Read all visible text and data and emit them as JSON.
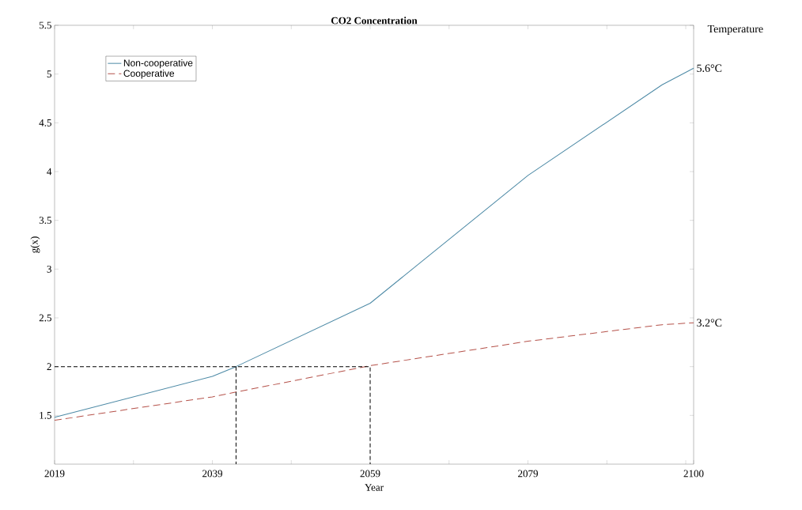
{
  "chart_data": {
    "type": "line",
    "title": "CO2 Concentration",
    "xlabel": "Year",
    "ylabel": "g(x)",
    "xlim": [
      2019,
      2100
    ],
    "xticks": [
      2019,
      {
        "value": 2029,
        "label": null
      },
      2039,
      {
        "value": 2049,
        "label": null
      },
      2059,
      {
        "value": 2069,
        "label": null
      },
      2079,
      {
        "value": 2089,
        "label": null
      },
      {
        "value": 2099,
        "label": null
      },
      2100
    ],
    "ylim": [
      1,
      5.5
    ],
    "yticks": [
      1.5,
      2,
      2.5,
      3,
      3.5,
      4,
      4.5,
      5,
      5.5
    ],
    "series": [
      {
        "name": "Non-cooperative",
        "color": "#4d8aa6",
        "line_style": "solid",
        "x": [
          2019,
          2039,
          2042,
          2059,
          2079,
          2096,
          2100
        ],
        "values": [
          1.48,
          1.9,
          2.0,
          2.65,
          3.96,
          4.89,
          5.06
        ]
      },
      {
        "name": "Cooperative",
        "color": "#b5524a",
        "line_style": "dashed",
        "x": [
          2019,
          2039,
          2042,
          2049,
          2059,
          2079,
          2096,
          2100
        ],
        "values": [
          1.45,
          1.69,
          1.74,
          1.85,
          2.01,
          2.26,
          2.43,
          2.45
        ]
      },
      {
        "color": "#000000",
        "line_style": "dashed",
        "x": [
          2019,
          2059,
          2059
        ],
        "values": [
          2,
          2,
          1
        ]
      },
      {
        "color": "#000000",
        "line_style": "dashed",
        "x": [
          2042,
          2042
        ],
        "values": [
          2,
          1
        ]
      }
    ],
    "legend": "top left",
    "marker": "none",
    "grid": false,
    "annotations": [
      "Temperature",
      {
        "text": "5.6°C",
        "x": 2100,
        "y": 5.06
      },
      {
        "text": "3.2°C",
        "x": 2100,
        "y": 2.45
      }
    ]
  }
}
